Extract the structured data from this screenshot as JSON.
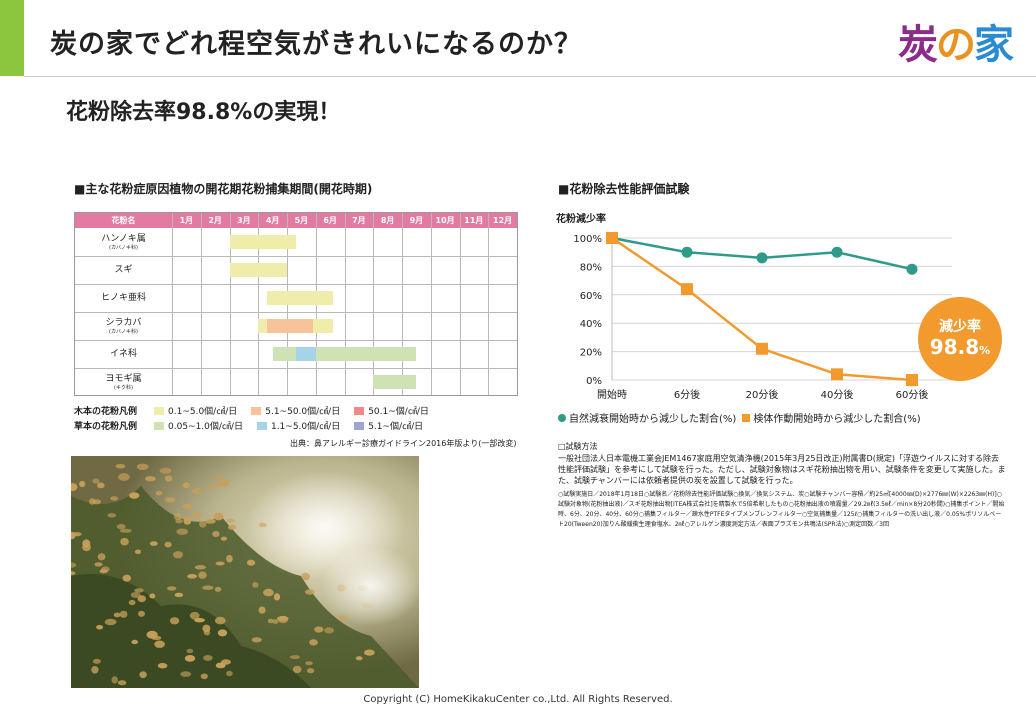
{
  "header": {
    "title": "炭の家でどれ程空気がきれいになるのか？",
    "logo_chars": [
      "炭",
      "の",
      "家"
    ],
    "logo_colors": [
      "#8b2c8b",
      "#e8921f",
      "#2a8bd0"
    ]
  },
  "subtitle": "花粉除去率98.8%の実現！",
  "pollen_section": {
    "heading": "■主な花粉症原因植物の開花期花粉捕集期間(開花時期)",
    "header_label": "花粉名",
    "months": [
      "1月",
      "2月",
      "3月",
      "4月",
      "5月",
      "6月",
      "7月",
      "8月",
      "9月",
      "10月",
      "11月",
      "12月"
    ],
    "plants": [
      {
        "name": "ハンノキ属",
        "sub": "(カバノキ科)"
      },
      {
        "name": "スギ",
        "sub": ""
      },
      {
        "name": "ヒノキ亜科",
        "sub": ""
      },
      {
        "name": "シラカバ",
        "sub": "(カバノキ科)"
      },
      {
        "name": "イネ科",
        "sub": ""
      },
      {
        "name": "ヨモギ属",
        "sub": "(キク科)"
      }
    ],
    "periods": [
      {
        "row": 0,
        "start": 3.0,
        "end": 5.3,
        "level": "low"
      },
      {
        "row": 1,
        "start": 3.0,
        "end": 5.0,
        "level": "low"
      },
      {
        "row": 2,
        "start": 4.3,
        "end": 6.6,
        "level": "low"
      },
      {
        "row": 3,
        "start": 4.0,
        "end": 6.6,
        "level": "low"
      },
      {
        "row": 3,
        "start": 4.3,
        "end": 5.9,
        "level": "mid"
      },
      {
        "row": 4,
        "start": 4.5,
        "end": 9.5,
        "level": "grass_low"
      },
      {
        "row": 4,
        "start": 5.3,
        "end": 6.0,
        "level": "grass_mid"
      },
      {
        "row": 5,
        "start": 8.0,
        "end": 9.5,
        "level": "grass_low"
      }
    ],
    "legend_wood": {
      "label": "木本の花粉凡例",
      "items": [
        {
          "text": "0.1~5.0個/㎠/日",
          "color": "#f0ecaa"
        },
        {
          "text": "5.1~50.0個/㎠/日",
          "color": "#f6c39a"
        },
        {
          "text": "50.1~個/㎠/日",
          "color": "#f08a8a"
        }
      ]
    },
    "legend_herb": {
      "label": "草本の花粉凡例",
      "items": [
        {
          "text": "0.05~1.0個/㎠/日",
          "color": "#cfe2b4"
        },
        {
          "text": "1.1~5.0個/㎠/日",
          "color": "#a7d3ea"
        },
        {
          "text": "5.1~個/㎠/日",
          "color": "#9aa6d4"
        }
      ]
    },
    "source": "出典：鼻アレルギー診療ガイドライン2016年版より(一部改変)"
  },
  "chart_data": {
    "type": "line",
    "title": "■花粉除去性能評価試験",
    "ylabel": "花粉減少率",
    "categories": [
      "開始時",
      "6分後",
      "20分後",
      "40分後",
      "60分後"
    ],
    "yticks": [
      "100%",
      "80%",
      "60%",
      "40%",
      "20%",
      "0%"
    ],
    "ylim": [
      0,
      100
    ],
    "series": [
      {
        "name": "自然減衰開始時から減少した割合(%)",
        "values": [
          100,
          90,
          86,
          90,
          78
        ],
        "color": "#2e9a8a",
        "marker": "circle"
      },
      {
        "name": "検体作動開始時から減少した割合(%)",
        "values": [
          100,
          64,
          22,
          4,
          0
        ],
        "color": "#f39a2e",
        "marker": "square"
      }
    ],
    "grid": true,
    "legend": "bottom"
  },
  "badge": {
    "line1": "減少率",
    "value": "98.8",
    "unit": "%"
  },
  "method": {
    "heading": "□試験方法",
    "p1": "一般社団法人日本電機工業会JEM1467家庭用空気清浄機(2015年3月25日改正)附属書D(規定)「浮遊ウイルスに対する除去性能評価試験」を参考にして試験を行った。ただし、試験対象物はスギ花粉抽出物を用い、試験条件を変更して実施した。また、試験チャンバーには依頼者提供の炭を設置して試験を行った。",
    "p2": "○試験実施日／2018年1月18日○試験名／花粉除去性能評価試験○換気／換気システム、炭○試験チャンバー容積／約25㎥[4000㎜(D)×2776㎜(W)×2263㎜(H)]○試験対象物(花粉抽出液)／スギ花粉抽出物[ITEA株式会社]を精製水で5倍希釈したもの○花粉抽出液の噴霧量／29.2㎖(3.5㎖／min×8分20秒間)○捕集ポイント／開始時、6分、20分、40分、60分○捕集フィルター／疎水性PTFEタイプメンブレンフィルター○空気捕集量／125ℓ○捕集フィルターの洗い出し液／0.05%ポリソルベート20(Tween20)加りん酸緩衝生理食塩水、2㎖○アレルゲン濃度測定方法／表面プラズモン共鳴法(SPR法)○測定回数／3回"
  },
  "footer": {
    "copyright": "Copyright (C) HomeKikakuCenter co.,Ltd. All Rights Reserved."
  }
}
